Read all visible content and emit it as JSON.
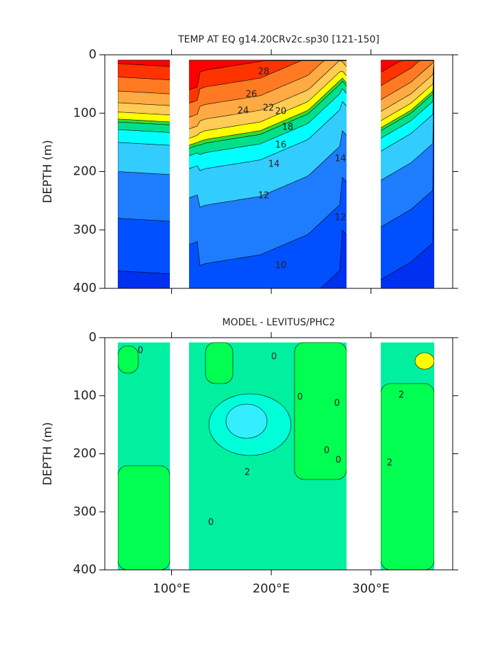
{
  "chart_data": [
    {
      "type": "contour",
      "title": "TEMP AT EQ g14.20CRv2c.sp30 [121-150]",
      "ylabel": "DEPTH (m)",
      "xlim": [
        33,
        382
      ],
      "ylim": [
        400,
        0
      ],
      "yticks": [
        0,
        100,
        200,
        300,
        400
      ],
      "contour_labels": [
        28,
        26,
        24,
        22,
        20,
        18,
        16,
        14,
        12,
        14,
        12,
        10
      ]
    },
    {
      "type": "contour",
      "title": "MODEL - LEVITUS/PHC2",
      "ylabel": "DEPTH (m)",
      "xlim": [
        33,
        382
      ],
      "ylim": [
        400,
        0
      ],
      "yticks": [
        0,
        100,
        200,
        300,
        400
      ],
      "xticks": [
        {
          "value": 100,
          "label": "100°E"
        },
        {
          "value": 200,
          "label": "200°E"
        },
        {
          "value": 300,
          "label": "300°E"
        }
      ],
      "contour_labels": [
        0,
        0,
        0,
        0,
        0,
        0,
        2,
        2,
        2,
        0
      ]
    }
  ]
}
